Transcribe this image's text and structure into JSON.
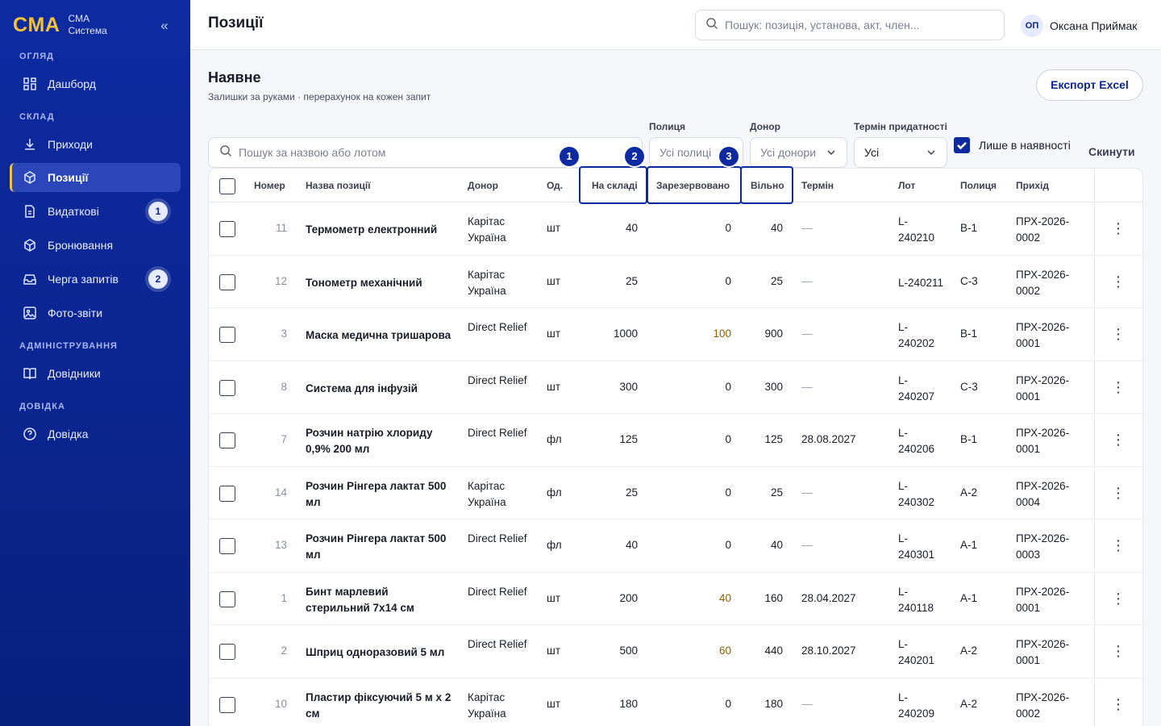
{
  "brand": {
    "logo": "CMA",
    "line1": "CMA",
    "line2": "Система"
  },
  "sidebar": {
    "sections": [
      "ОГЛЯД",
      "СКЛАД",
      "АДМІНІСТРУВАННЯ",
      "ДОВІДКА"
    ],
    "items": [
      {
        "label": "Дашборд",
        "icon": "grid-icon"
      },
      {
        "label": "Приходи",
        "icon": "download-icon"
      },
      {
        "label": "Позиції",
        "icon": "box-icon",
        "active": true
      },
      {
        "label": "Видаткові",
        "icon": "document-icon",
        "badge": "1"
      },
      {
        "label": "Бронювання",
        "icon": "box-icon"
      },
      {
        "label": "Черга запитів",
        "icon": "inbox-icon",
        "badge": "2"
      },
      {
        "label": "Фото-звіти",
        "icon": "image-icon"
      },
      {
        "label": "Довідники",
        "icon": "book-icon"
      },
      {
        "label": "Довідка",
        "icon": "help-icon"
      }
    ]
  },
  "header": {
    "title": "Позиції",
    "search_placeholder": "Пошук: позиція, установа, акт, член...",
    "user_initials": "ОП",
    "user_name": "Оксана Приймак"
  },
  "main": {
    "title": "Наявне",
    "subtitle": "Залишки за руками · перерахунок на кожен запит",
    "export_label": "Експорт Excel",
    "filters": {
      "search_placeholder": "Пошук за назвою або лотом",
      "shelf_label": "Полиця",
      "shelf_value": "Усі полиці",
      "donor_label": "Донор",
      "donor_value": "Усі донори",
      "expiry_label": "Термін придатності",
      "expiry_value": "Усі",
      "instock_label": "Лише в наявності",
      "reset_label": "Скинути"
    },
    "markers": [
      "1",
      "2",
      "3"
    ],
    "columns": [
      "Номер",
      "Назва позиції",
      "Донор",
      "Од.",
      "На складі",
      "Зарезервовано",
      "Вільно",
      "Термін",
      "Лот",
      "Полиця",
      "Прихід"
    ],
    "rows": [
      {
        "num": "11",
        "name": "Термометр електронний",
        "donor": "Карітас Україна",
        "unit": "шт",
        "stock": "40",
        "reserved": "0",
        "free": "40",
        "term": "—",
        "lot": "L-240210",
        "shelf": "B-1",
        "income": "ПРХ-2026-0002"
      },
      {
        "num": "12",
        "name": "Тонометр механічний",
        "donor": "Карітас Україна",
        "unit": "шт",
        "stock": "25",
        "reserved": "0",
        "free": "25",
        "term": "—",
        "lot": "L-240211",
        "shelf": "C-3",
        "income": "ПРХ-2026-0002"
      },
      {
        "num": "3",
        "name": "Маска медична тришарова",
        "donor": "Direct Relief",
        "unit": "шт",
        "stock": "1000",
        "reserved": "100",
        "free": "900",
        "term": "—",
        "lot": "L-240202",
        "shelf": "B-1",
        "income": "ПРХ-2026-0001"
      },
      {
        "num": "8",
        "name": "Система для інфузій",
        "donor": "Direct Relief",
        "unit": "шт",
        "stock": "300",
        "reserved": "0",
        "free": "300",
        "term": "—",
        "lot": "L-240207",
        "shelf": "C-3",
        "income": "ПРХ-2026-0001"
      },
      {
        "num": "7",
        "name": "Розчин натрію хлориду 0,9% 200 мл",
        "donor": "Direct Relief",
        "unit": "фл",
        "stock": "125",
        "reserved": "0",
        "free": "125",
        "term": "28.08.2027",
        "lot": "L-240206",
        "shelf": "B-1",
        "income": "ПРХ-2026-0001"
      },
      {
        "num": "14",
        "name": "Розчин Рінгера лактат 500 мл",
        "donor": "Карітас Україна",
        "unit": "фл",
        "stock": "25",
        "reserved": "0",
        "free": "25",
        "term": "—",
        "lot": "L-240302",
        "shelf": "A-2",
        "income": "ПРХ-2026-0004"
      },
      {
        "num": "13",
        "name": "Розчин Рінгера лактат 500 мл",
        "donor": "Direct Relief",
        "unit": "фл",
        "stock": "40",
        "reserved": "0",
        "free": "40",
        "term": "—",
        "lot": "L-240301",
        "shelf": "A-1",
        "income": "ПРХ-2026-0003"
      },
      {
        "num": "1",
        "name": "Бинт марлевий стерильний 7х14 см",
        "donor": "Direct Relief",
        "unit": "шт",
        "stock": "200",
        "reserved": "40",
        "free": "160",
        "term": "28.04.2027",
        "lot": "L-240118",
        "shelf": "A-1",
        "income": "ПРХ-2026-0001"
      },
      {
        "num": "2",
        "name": "Шприц одноразовий 5 мл",
        "donor": "Direct Relief",
        "unit": "шт",
        "stock": "500",
        "reserved": "60",
        "free": "440",
        "term": "28.10.2027",
        "lot": "L-240201",
        "shelf": "A-2",
        "income": "ПРХ-2026-0001"
      },
      {
        "num": "10",
        "name": "Пластир фіксуючий 5 м х 2 см",
        "donor": "Карітас Україна",
        "unit": "шт",
        "stock": "180",
        "reserved": "0",
        "free": "180",
        "term": "—",
        "lot": "L-240209",
        "shelf": "A-2",
        "income": "ПРХ-2026-0002"
      }
    ]
  }
}
